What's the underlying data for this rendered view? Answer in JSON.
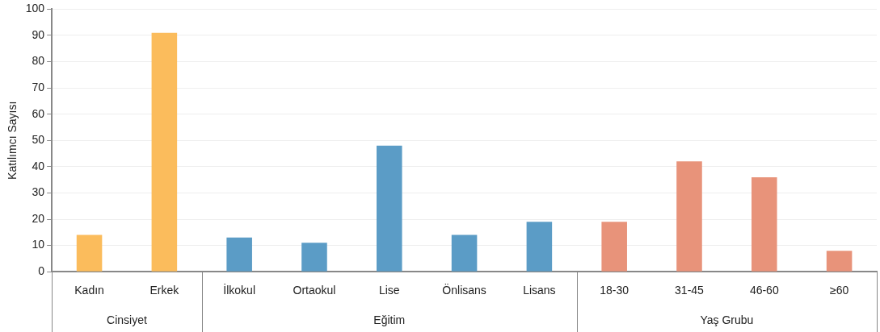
{
  "chart_data": {
    "type": "bar",
    "ylabel": "Katılımcı Sayısı",
    "categories": [
      "Kadın",
      "Erkek",
      "İlkokul",
      "Ortaokul",
      "Lise",
      "Önlisans",
      "Lisans",
      "18-30",
      "31-45",
      "46-60",
      "≥60"
    ],
    "series": [
      {
        "color": "#fbbc5c",
        "values": [
          14,
          91,
          null,
          null,
          null,
          null,
          null,
          null,
          null,
          null,
          null
        ]
      },
      {
        "color": "#5b9cc6",
        "values": [
          null,
          null,
          13,
          11,
          48,
          14,
          19,
          null,
          null,
          null,
          null
        ]
      },
      {
        "color": "#e8937a",
        "values": [
          null,
          null,
          null,
          null,
          null,
          null,
          null,
          19,
          42,
          36,
          8
        ]
      }
    ],
    "ylim": [
      0,
      100
    ],
    "yticks": [
      0,
      10,
      20,
      30,
      40,
      50,
      60,
      70,
      80,
      90,
      100
    ],
    "annotations": [
      "Cinsiyet",
      "Eğitim",
      "Yaş Grubu"
    ],
    "grid": "y"
  }
}
